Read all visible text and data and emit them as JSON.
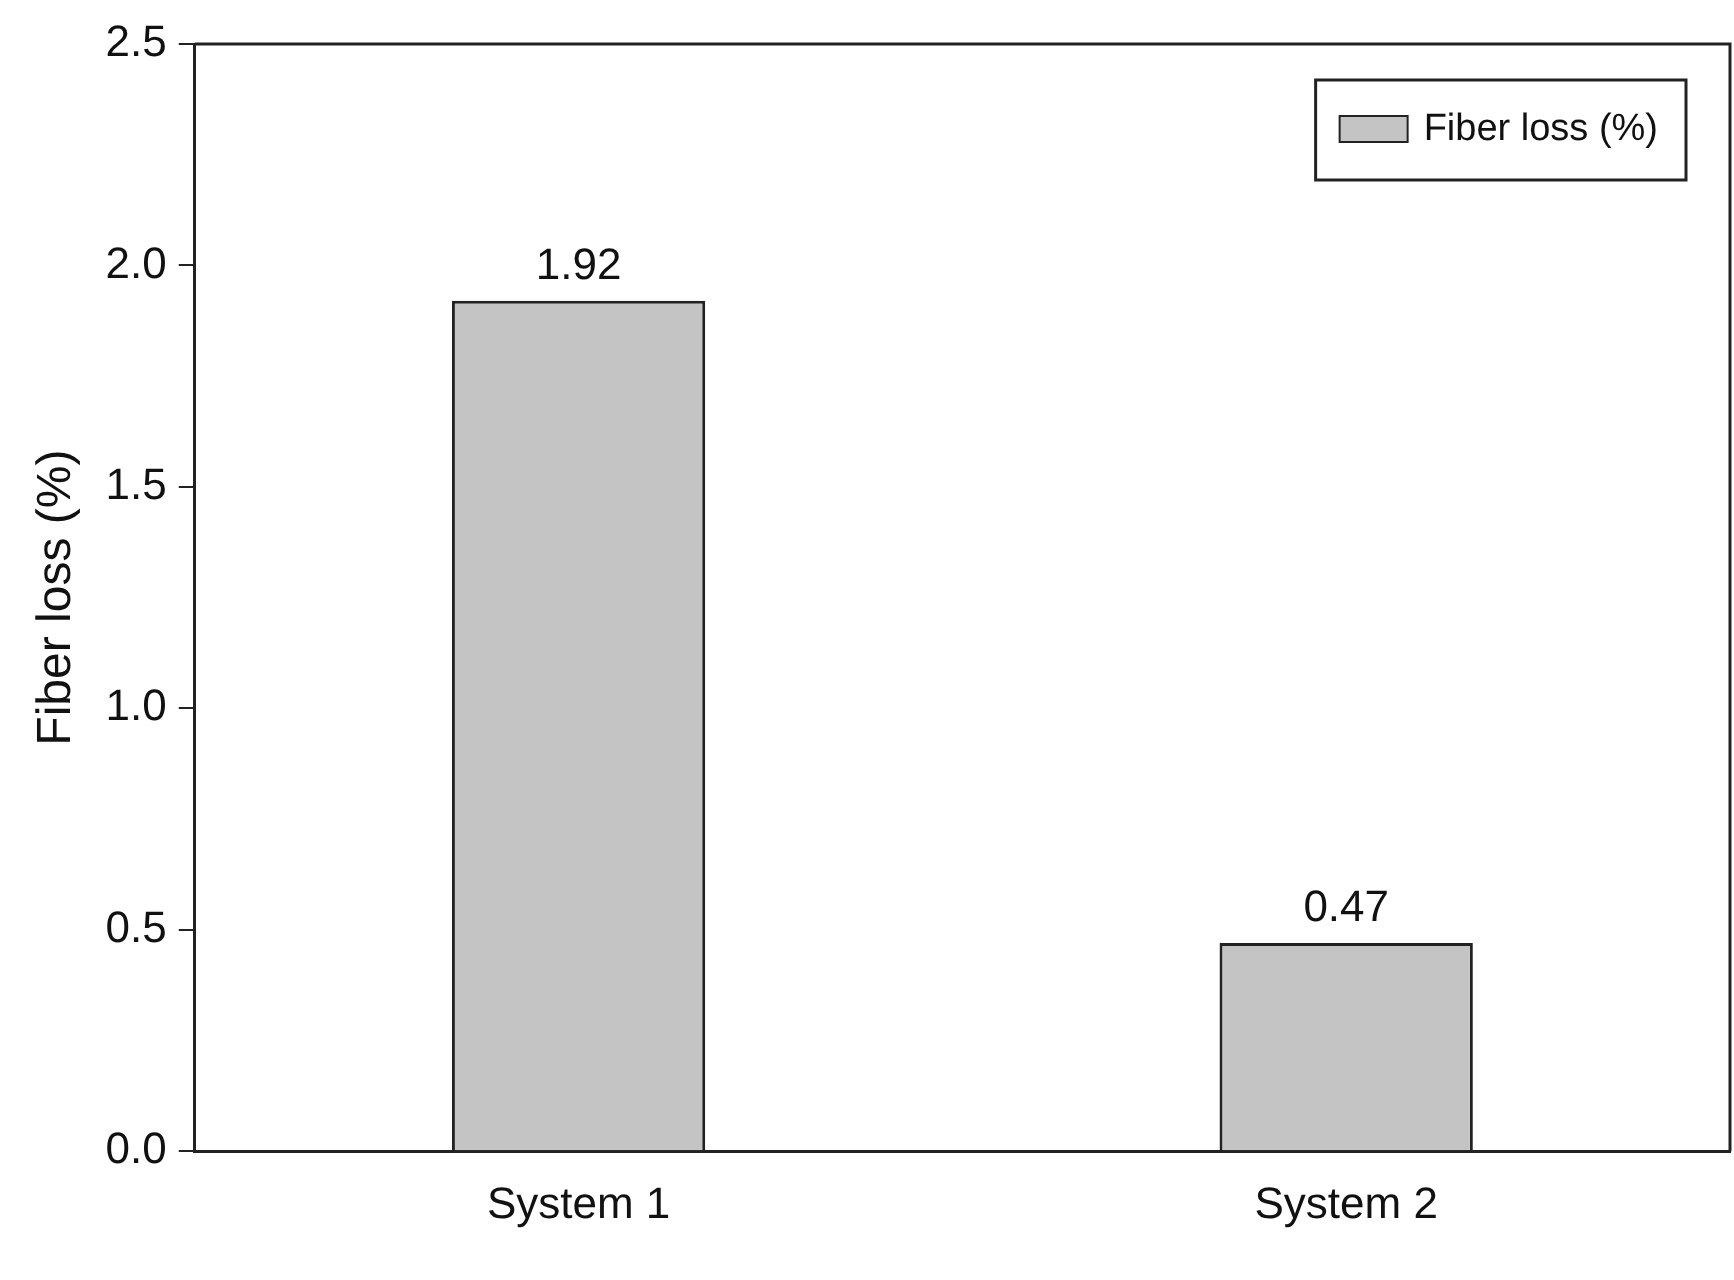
{
  "chart_data": {
    "type": "bar",
    "ylabel": "Fiber loss (%)",
    "categories": [
      "System 1",
      "System 2"
    ],
    "series": [
      {
        "name": "Fiber loss (%)",
        "color": "#c4c4c4",
        "values": [
          1.92,
          0.47
        ]
      }
    ],
    "ylim": [
      0,
      2.5
    ],
    "yticks": [
      {
        "value": 0,
        "label": "0.0"
      },
      {
        "value": 0.5,
        "label": "0.5"
      },
      {
        "value": 1,
        "label": "1.0"
      },
      {
        "value": 1.5,
        "label": "1.5"
      },
      {
        "value": 2,
        "label": "2.0"
      },
      {
        "value": 2.5,
        "label": "2.5"
      }
    ],
    "data_labels": true,
    "legend": "top right",
    "grid": false
  }
}
